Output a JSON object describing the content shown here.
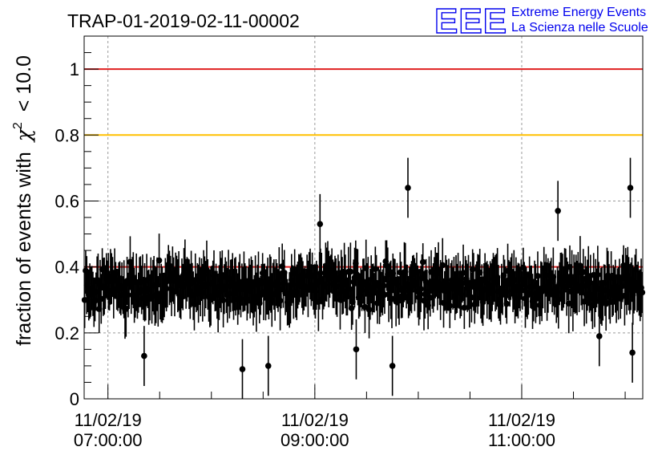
{
  "chart_data": {
    "type": "scatter",
    "title": "TRAP-01-2019-02-11-00002",
    "ylabel_prefix": "fraction of events with",
    "ylabel_symbol": "χ",
    "ylabel_sup": "2",
    "ylabel_suffix": "< 10.0",
    "xlabel": "",
    "ylim": [
      0,
      1.1
    ],
    "x_range_hours": [
      6.77,
      12.17
    ],
    "yticks": [
      0,
      0.2,
      0.4,
      0.6,
      0.8,
      1
    ],
    "ytick_labels": [
      "0",
      "0.2",
      "0.4",
      "0.6",
      "0.8",
      "1"
    ],
    "xticks": [
      {
        "hour": 7.0,
        "date": "11/02/19",
        "time": "07:00:00"
      },
      {
        "hour": 9.0,
        "date": "11/02/19",
        "time": "09:00:00"
      },
      {
        "hour": 11.0,
        "date": "11/02/19",
        "time": "11:00:00"
      }
    ],
    "reference_lines": [
      {
        "y": 1.0,
        "color": "#e02020"
      },
      {
        "y": 0.8,
        "color": "#ffc000"
      },
      {
        "y": 0.4,
        "color": "#e02020"
      }
    ],
    "grid": true,
    "n_points": 540,
    "y_mean": 0.34,
    "y_spread": 0.07,
    "error_typical": 0.07,
    "notable_points": [
      {
        "hour": 7.35,
        "y": 0.13
      },
      {
        "hour": 8.3,
        "y": 0.09
      },
      {
        "hour": 8.55,
        "y": 0.1
      },
      {
        "hour": 9.05,
        "y": 0.53
      },
      {
        "hour": 9.4,
        "y": 0.15
      },
      {
        "hour": 9.75,
        "y": 0.1
      },
      {
        "hour": 9.9,
        "y": 0.64
      },
      {
        "hour": 11.35,
        "y": 0.57
      },
      {
        "hour": 11.75,
        "y": 0.19
      },
      {
        "hour": 12.05,
        "y": 0.64
      },
      {
        "hour": 12.07,
        "y": 0.14
      }
    ],
    "marker_color": "#000000"
  },
  "logo": {
    "letters": "EEE",
    "line1": "Extreme Energy Events",
    "line2": "La Scienza nelle Scuole",
    "color": "#0000ee"
  }
}
